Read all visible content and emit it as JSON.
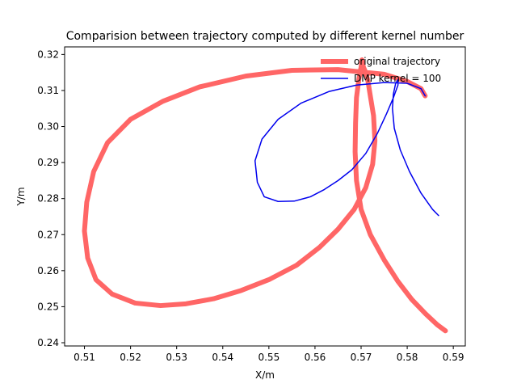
{
  "chart_data": {
    "type": "line",
    "title": "Comparision between trajectory computed by different kernel number",
    "xlabel": "X/m",
    "ylabel": "Y/m",
    "xlim": [
      0.5057,
      0.5926
    ],
    "ylim": [
      0.2391,
      0.3221
    ],
    "xticks": [
      0.51,
      0.52,
      0.53,
      0.54,
      0.55,
      0.56,
      0.57,
      0.58,
      0.59
    ],
    "yticks": [
      0.24,
      0.25,
      0.26,
      0.27,
      0.28,
      0.29,
      0.3,
      0.31,
      0.32
    ],
    "xtick_labels": [
      "0.51",
      "0.52",
      "0.53",
      "0.54",
      "0.55",
      "0.56",
      "0.57",
      "0.58",
      "0.59"
    ],
    "ytick_labels": [
      "0.24",
      "0.25",
      "0.26",
      "0.27",
      "0.28",
      "0.29",
      "0.30",
      "0.31",
      "0.32"
    ],
    "grid": false,
    "legend_position": "top-right",
    "series": [
      {
        "name": "original trajectory",
        "color": "#ff6666",
        "x": [
          0.5839,
          0.583,
          0.58,
          0.575,
          0.565,
          0.555,
          0.545,
          0.535,
          0.527,
          0.52,
          0.515,
          0.512,
          0.5105,
          0.51,
          0.5107,
          0.5125,
          0.516,
          0.521,
          0.5265,
          0.532,
          0.538,
          0.544,
          0.55,
          0.556,
          0.561,
          0.565,
          0.5685,
          0.571,
          0.5725,
          0.573,
          0.5727,
          0.572,
          0.5715,
          0.571,
          0.5705,
          0.5702,
          0.57,
          0.5695,
          0.569,
          0.5688,
          0.5687,
          0.569,
          0.57,
          0.572,
          0.575,
          0.578,
          0.581,
          0.584,
          0.5865,
          0.5883
        ],
        "y": [
          0.3085,
          0.3105,
          0.3125,
          0.3145,
          0.3158,
          0.3156,
          0.314,
          0.311,
          0.307,
          0.302,
          0.2955,
          0.2875,
          0.279,
          0.271,
          0.2635,
          0.2575,
          0.2535,
          0.251,
          0.2503,
          0.2508,
          0.2522,
          0.2545,
          0.2575,
          0.2615,
          0.2665,
          0.2715,
          0.277,
          0.283,
          0.2895,
          0.296,
          0.303,
          0.3085,
          0.3125,
          0.315,
          0.3165,
          0.3185,
          0.3165,
          0.313,
          0.308,
          0.301,
          0.293,
          0.285,
          0.277,
          0.27,
          0.263,
          0.257,
          0.252,
          0.248,
          0.245,
          0.2433
        ]
      },
      {
        "name": "DMP kernel = 100",
        "color": "#0000ee",
        "x": [
          0.5839,
          0.583,
          0.58,
          0.575,
          0.569,
          0.563,
          0.557,
          0.552,
          0.5485,
          0.547,
          0.5475,
          0.549,
          0.552,
          0.5555,
          0.559,
          0.562,
          0.565,
          0.568,
          0.571,
          0.5735,
          0.5755,
          0.577,
          0.578,
          0.578,
          0.5775,
          0.577,
          0.5768,
          0.5772,
          0.5785,
          0.5805,
          0.583,
          0.5855,
          0.5868
        ],
        "y": [
          0.3085,
          0.3105,
          0.312,
          0.3122,
          0.3115,
          0.3097,
          0.3065,
          0.302,
          0.2965,
          0.2905,
          0.2845,
          0.2805,
          0.2792,
          0.2793,
          0.2805,
          0.2825,
          0.285,
          0.288,
          0.2925,
          0.298,
          0.3035,
          0.308,
          0.3115,
          0.313,
          0.312,
          0.309,
          0.305,
          0.2995,
          0.2935,
          0.2875,
          0.2815,
          0.277,
          0.2753
        ]
      }
    ]
  }
}
